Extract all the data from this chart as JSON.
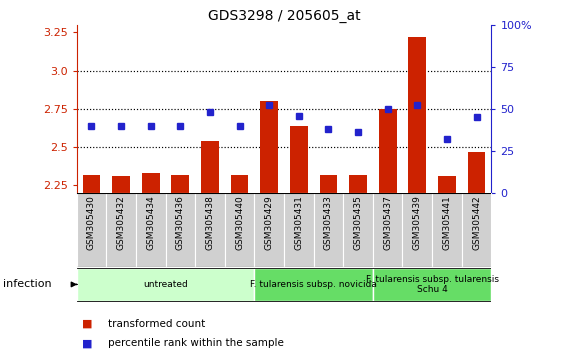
{
  "title": "GDS3298 / 205605_at",
  "samples": [
    "GSM305430",
    "GSM305432",
    "GSM305434",
    "GSM305436",
    "GSM305438",
    "GSM305440",
    "GSM305429",
    "GSM305431",
    "GSM305433",
    "GSM305435",
    "GSM305437",
    "GSM305439",
    "GSM305441",
    "GSM305442"
  ],
  "bar_values": [
    2.32,
    2.31,
    2.33,
    2.32,
    2.54,
    2.32,
    2.8,
    2.64,
    2.32,
    2.32,
    2.75,
    3.22,
    2.31,
    2.47
  ],
  "dot_values_pct": [
    40,
    40,
    40,
    40,
    48,
    40,
    52,
    46,
    38,
    36,
    50,
    52,
    32,
    45
  ],
  "ylim_left": [
    2.2,
    3.3
  ],
  "ylim_right": [
    0,
    100
  ],
  "yticks_left": [
    2.25,
    2.5,
    2.75,
    3.0,
    3.25
  ],
  "yticks_right": [
    0,
    25,
    50,
    75,
    100
  ],
  "ytick_labels_right": [
    "0",
    "25",
    "50",
    "75",
    "100%"
  ],
  "hlines": [
    2.5,
    2.75,
    3.0
  ],
  "bar_color": "#cc2200",
  "dot_color": "#2222cc",
  "left_axis_color": "#cc2200",
  "right_axis_color": "#2222cc",
  "groups": [
    {
      "label": "untreated",
      "start": 0,
      "end": 5,
      "color": "#ccffcc"
    },
    {
      "label": "F. tularensis subsp. novicida",
      "start": 6,
      "end": 9,
      "color": "#66dd66"
    },
    {
      "label": "F. tularensis subsp. tularensis\nSchu 4",
      "start": 10,
      "end": 13,
      "color": "#66dd66"
    }
  ],
  "infection_label": "infection",
  "legend_items": [
    {
      "color": "#cc2200",
      "label": "transformed count"
    },
    {
      "color": "#2222cc",
      "label": "percentile rank within the sample"
    }
  ],
  "cell_bg": "#d0d0d0",
  "cell_border": "#ffffff"
}
